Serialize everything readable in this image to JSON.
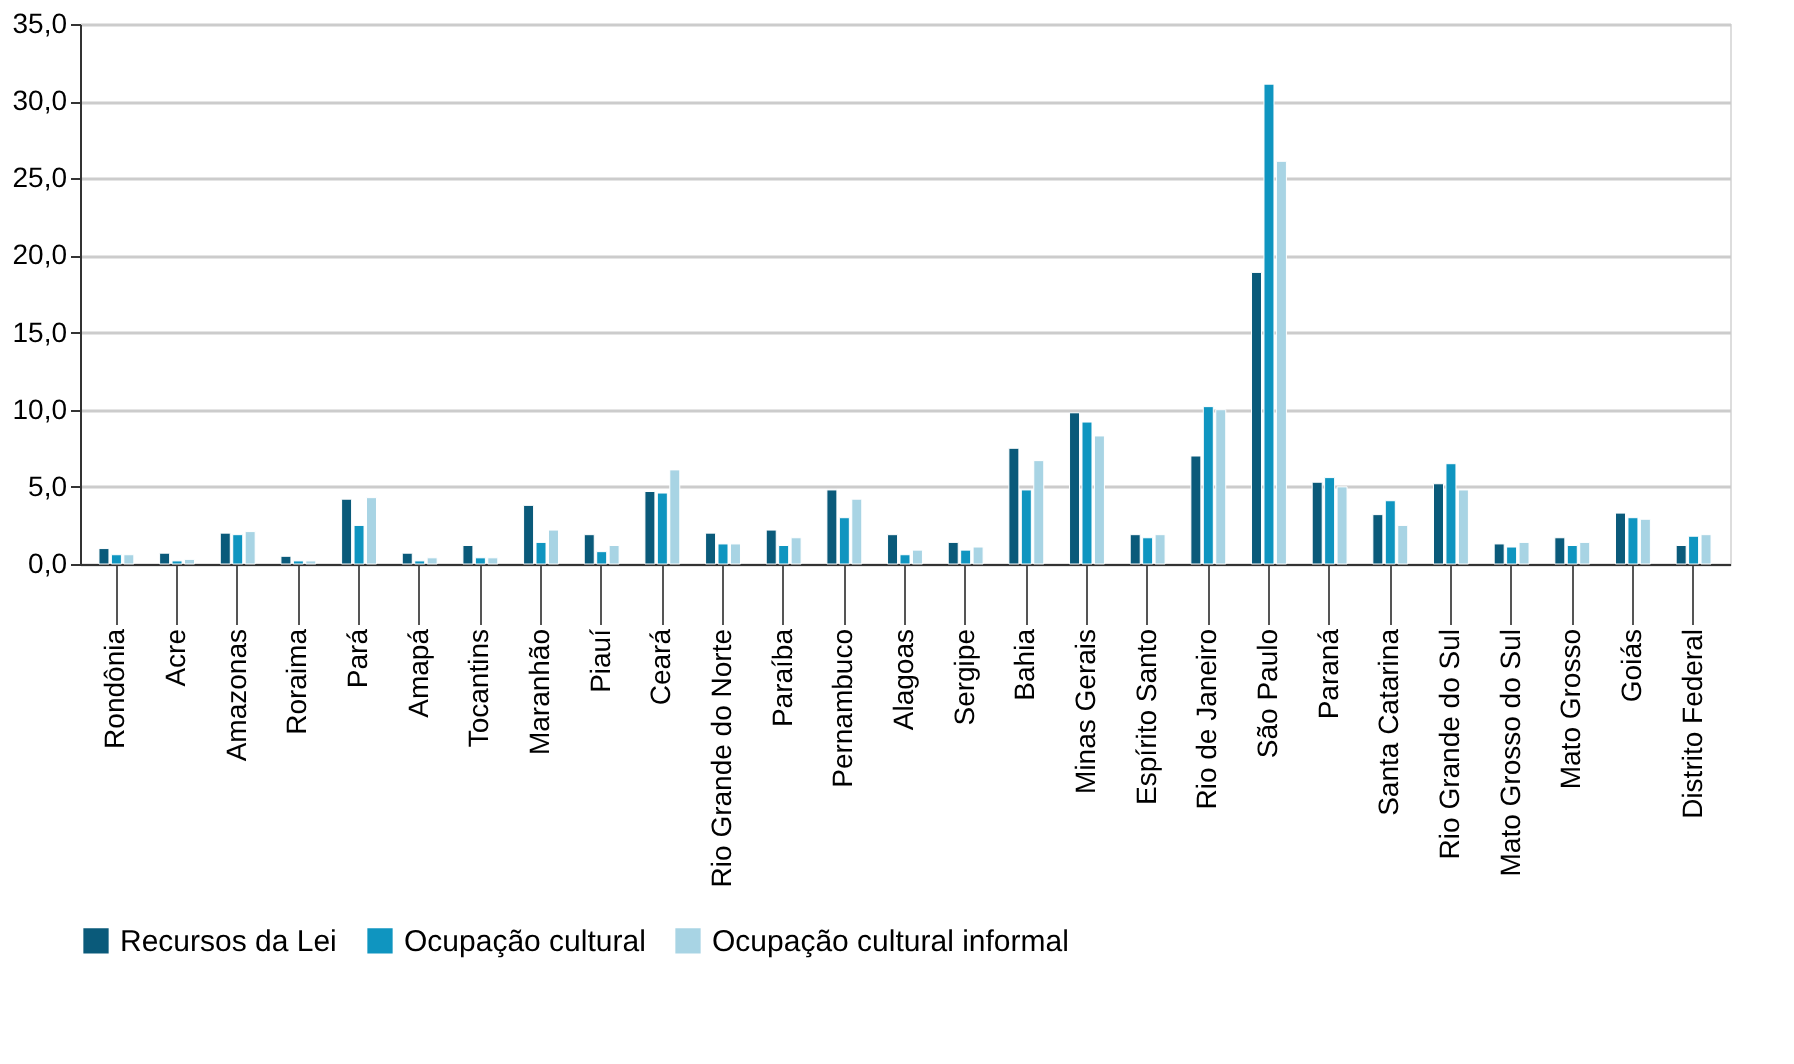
{
  "chart_data": {
    "type": "bar",
    "categories": [
      "Rondônia",
      "Acre",
      "Amazonas",
      "Roraima",
      "Pará",
      "Amapá",
      "Tocantins",
      "Maranhão",
      "Piauí",
      "Ceará",
      "Rio Grande do Norte",
      "Paraíba",
      "Pernambuco",
      "Alagoas",
      "Sergipe",
      "Bahia",
      "Minas Gerais",
      "Espírito Santo",
      "Rio de Janeiro",
      "São Paulo",
      "Paraná",
      "Santa Catarina",
      "Rio Grande do Sul",
      "Mato Grosso do Sul",
      "Mato Grosso",
      "Goiás",
      "Distrito Federal"
    ],
    "series": [
      {
        "name": "Recursos da Lei",
        "color": "#0a5a7a",
        "values": [
          1.0,
          0.7,
          2.0,
          0.5,
          4.2,
          0.7,
          1.2,
          3.8,
          1.9,
          4.7,
          2.0,
          2.2,
          4.8,
          1.9,
          1.4,
          7.5,
          9.8,
          1.9,
          7.0,
          18.9,
          5.3,
          3.2,
          5.2,
          1.3,
          1.7,
          3.3,
          1.2
        ]
      },
      {
        "name": "Ocupação cultural",
        "color": "#0f95c0",
        "values": [
          0.6,
          0.2,
          1.9,
          0.2,
          2.5,
          0.2,
          0.4,
          1.4,
          0.8,
          4.6,
          1.3,
          1.2,
          3.0,
          0.6,
          0.9,
          4.8,
          9.2,
          1.7,
          10.2,
          31.1,
          5.6,
          4.1,
          6.5,
          1.1,
          1.2,
          3.0,
          1.8
        ]
      },
      {
        "name": "Ocupação cultural informal",
        "color": "#a8d4e4",
        "values": [
          0.6,
          0.3,
          2.1,
          0.2,
          4.3,
          0.4,
          0.4,
          2.2,
          1.2,
          6.1,
          1.3,
          1.7,
          4.2,
          0.9,
          1.1,
          6.7,
          8.3,
          1.9,
          10.0,
          26.1,
          5.0,
          2.5,
          4.8,
          1.4,
          1.4,
          2.9,
          1.9
        ]
      }
    ],
    "ylim": [
      0,
      35
    ],
    "yticks": [
      {
        "value": 0,
        "label": "0,0"
      },
      {
        "value": 5,
        "label": "5,0"
      },
      {
        "value": 10,
        "label": "10,0"
      },
      {
        "value": 15,
        "label": "15,0"
      },
      {
        "value": 20,
        "label": "20,0"
      },
      {
        "value": 25,
        "label": "25,0"
      },
      {
        "value": 30,
        "label": "30,0"
      },
      {
        "value": 35,
        "label": "35,0"
      }
    ],
    "grid": "y",
    "legend": "bottom"
  }
}
